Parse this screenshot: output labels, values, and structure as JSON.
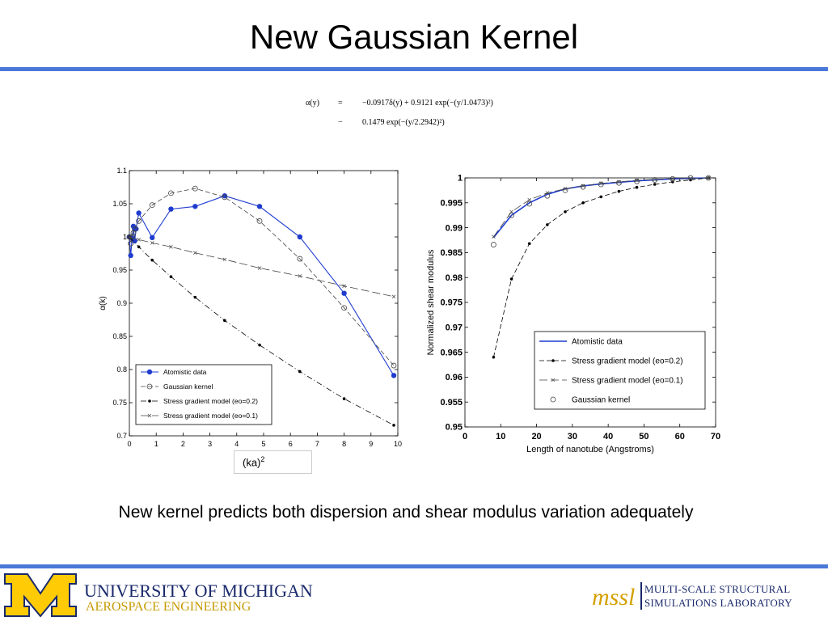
{
  "slide": {
    "title": "New Gaussian Kernel",
    "equation": {
      "line1_lhs": "α(y)",
      "line1_op": "=",
      "line1_rhs": "−0.0917δ(y) + 0.9121 exp(−(y/1.0473)²)",
      "line2_op": "−",
      "line2_rhs": "0.1479 exp(−(y/2.2942)²)"
    },
    "caption": "New kernel predicts both dispersion and shear modulus variation adequately",
    "footer": {
      "university": "UNIVERSITY OF MICHIGAN",
      "department": "AEROSPACE ENGINEERING",
      "lab_abbrev": "mssl",
      "lab_line1": "MULTI-SCALE STRUCTURAL",
      "lab_line2": "SIMULATIONS LABORATORY"
    }
  },
  "colors": {
    "accent_rule": "#4a78d8",
    "atomistic": "#1f3ccf",
    "model": "#000000",
    "gaussian": "#444444"
  },
  "chart_data": [
    {
      "type": "line",
      "xlabel": "(ka)2",
      "ylabel": "α(k)",
      "xlim": [
        0,
        10
      ],
      "ylim": [
        0.7,
        1.1
      ],
      "xticks": [
        0,
        1,
        2,
        3,
        4,
        5,
        6,
        7,
        8,
        9,
        10
      ],
      "yticks": [
        0.7,
        0.75,
        0.8,
        0.85,
        0.9,
        0.95,
        1,
        1.05,
        1.1
      ],
      "legend_position": "bottom-left",
      "series": [
        {
          "name": "Atomistic data",
          "style": "blue-solid-dot",
          "x": [
            0,
            0.05,
            0.1,
            0.15,
            0.2,
            0.25,
            0.35,
            0.85,
            1.55,
            2.45,
            3.55,
            4.85,
            6.35,
            8.0,
            9.85
          ],
          "y": [
            1.0,
            0.972,
            0.998,
            1.016,
            0.994,
            1.012,
            1.036,
            0.999,
            1.042,
            1.046,
            1.062,
            1.046,
            1.0,
            0.915,
            0.791
          ]
        },
        {
          "name": "Gaussian kernel",
          "style": "dash-circle",
          "x": [
            0,
            0.05,
            0.1,
            0.15,
            0.2,
            0.35,
            0.85,
            1.55,
            2.45,
            3.55,
            4.85,
            6.35,
            8.0,
            9.85
          ],
          "y": [
            1.0,
            0.99,
            1.0,
            1.006,
            1.012,
            1.024,
            1.048,
            1.066,
            1.073,
            1.06,
            1.024,
            0.967,
            0.893,
            0.806
          ]
        },
        {
          "name": "Stress gradient model (eo=0.2)",
          "style": "dashdot-dot",
          "x": [
            0,
            0.35,
            0.85,
            1.55,
            2.45,
            3.55,
            4.85,
            6.35,
            8.0,
            9.85
          ],
          "y": [
            1.0,
            0.985,
            0.965,
            0.94,
            0.909,
            0.874,
            0.837,
            0.797,
            0.756,
            0.716
          ]
        },
        {
          "name": "Stress gradient model (eo=0.1)",
          "style": "longdash-x",
          "x": [
            0,
            0.35,
            0.85,
            1.55,
            2.45,
            3.55,
            4.85,
            6.35,
            8.0,
            9.85
          ],
          "y": [
            1.0,
            0.996,
            0.991,
            0.985,
            0.976,
            0.966,
            0.953,
            0.941,
            0.926,
            0.91
          ]
        }
      ]
    },
    {
      "type": "line",
      "xlabel": "Length of nanotube (Angstroms)",
      "ylabel": "Normalized shear modulus",
      "xlim": [
        0,
        70
      ],
      "ylim": [
        0.95,
        1
      ],
      "xticks": [
        0,
        10,
        20,
        30,
        40,
        50,
        60,
        70
      ],
      "yticks": [
        0.95,
        0.955,
        0.96,
        0.965,
        0.97,
        0.975,
        0.98,
        0.985,
        0.99,
        0.995,
        1
      ],
      "legend_position": "bottom-right",
      "series": [
        {
          "name": "Atomistic data",
          "style": "blue-solid",
          "x": [
            8,
            13,
            18,
            23,
            28,
            33,
            38,
            43,
            48,
            53,
            58,
            63,
            68
          ],
          "y": [
            0.988,
            0.9925,
            0.995,
            0.9967,
            0.9978,
            0.9984,
            0.9988,
            0.9991,
            0.9994,
            0.9996,
            0.9998,
            0.9999,
            1.0
          ]
        },
        {
          "name": "Stress gradient model (eo=0.2)",
          "style": "dash-dot",
          "x": [
            8,
            13,
            18,
            23,
            28,
            33,
            38,
            43,
            48,
            53,
            58,
            63,
            68
          ],
          "y": [
            0.964,
            0.9797,
            0.9868,
            0.9906,
            0.9932,
            0.995,
            0.9962,
            0.9973,
            0.9981,
            0.9987,
            0.9992,
            0.9996,
            1.0
          ]
        },
        {
          "name": "Stress gradient model (eo=0.1)",
          "style": "dash-x",
          "x": [
            8,
            13,
            18,
            23,
            28,
            33,
            38,
            43,
            48,
            53,
            58,
            63,
            68
          ],
          "y": [
            0.9882,
            0.9932,
            0.9956,
            0.997,
            0.9978,
            0.9984,
            0.9989,
            0.9992,
            0.9995,
            0.9997,
            0.9998,
            0.9999,
            1.0
          ]
        },
        {
          "name": "Gaussian kernel",
          "style": "circle",
          "x": [
            8,
            13,
            18,
            23,
            28,
            33,
            38,
            43,
            48,
            53,
            58,
            63,
            68
          ],
          "y": [
            0.9866,
            0.9925,
            0.9948,
            0.9964,
            0.9975,
            0.9982,
            0.9987,
            0.999,
            0.9993,
            0.9996,
            0.9998,
            1.0,
            1.0
          ]
        }
      ]
    }
  ]
}
